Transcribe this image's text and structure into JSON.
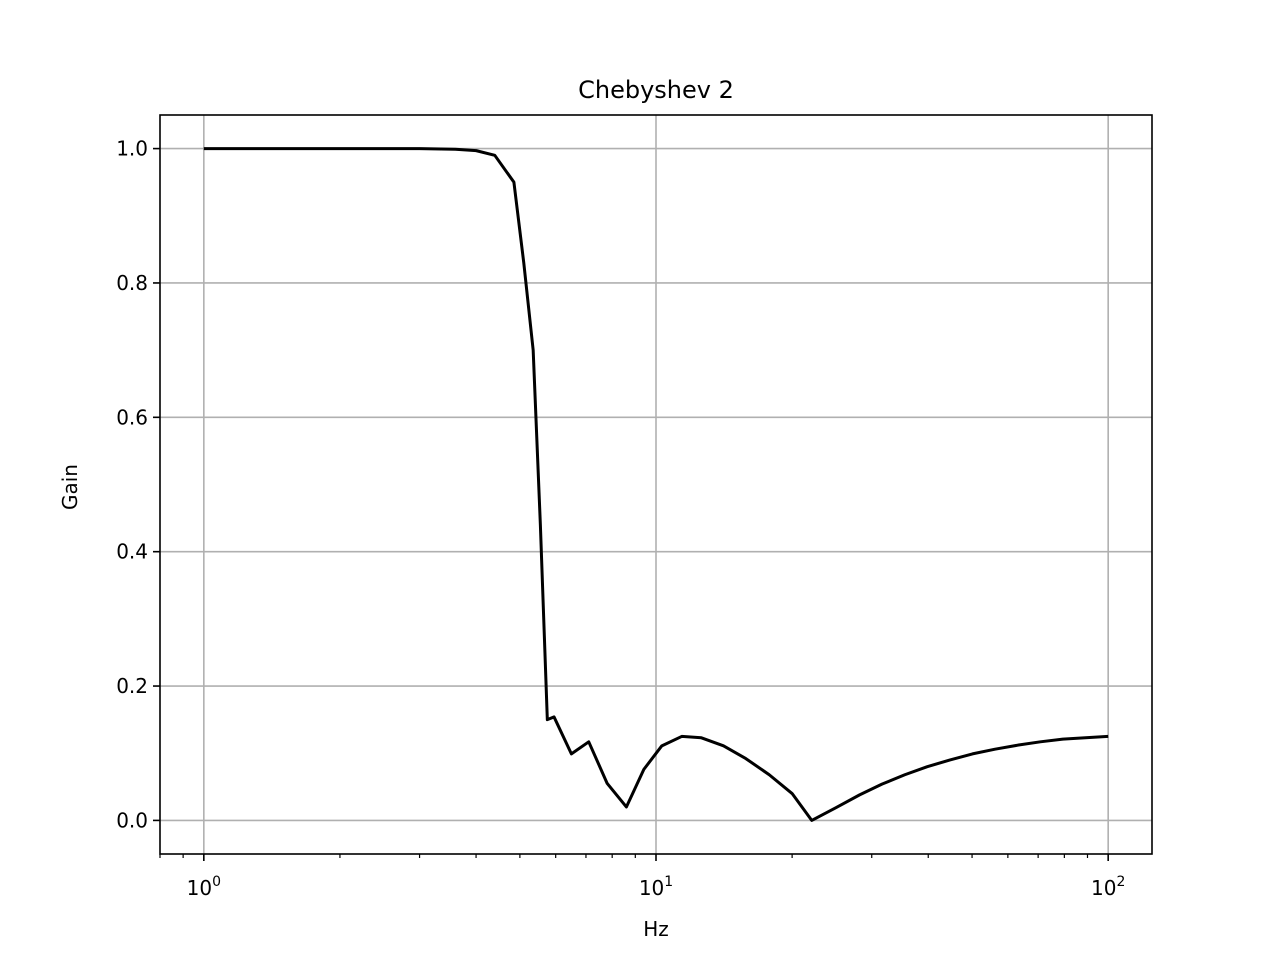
{
  "chart_data": {
    "type": "line",
    "title": "Chebyshev 2",
    "xlabel": "Hz",
    "ylabel": "Gain",
    "x_scale": "log",
    "xlim": [
      0.8,
      125
    ],
    "ylim": [
      -0.05,
      1.05
    ],
    "grid": true,
    "line_color": "#000000",
    "x_ticks": [
      {
        "value": 1,
        "base": "10",
        "exp": "0"
      },
      {
        "value": 10,
        "base": "10",
        "exp": "1"
      },
      {
        "value": 100,
        "base": "10",
        "exp": "2"
      }
    ],
    "y_ticks": [
      {
        "value": 0.0,
        "label": "0.0"
      },
      {
        "value": 0.2,
        "label": "0.2"
      },
      {
        "value": 0.4,
        "label": "0.4"
      },
      {
        "value": 0.6,
        "label": "0.6"
      },
      {
        "value": 0.8,
        "label": "0.8"
      },
      {
        "value": 1.0,
        "label": "1.0"
      }
    ],
    "series": [
      {
        "x": [
          1.0,
          3.0,
          3.6,
          4.0,
          4.4,
          4.85,
          5.1,
          5.35,
          5.55,
          5.75,
          5.95,
          6.5,
          7.1,
          7.8,
          8.6,
          9.4,
          10.3,
          11.4,
          12.6,
          14.1,
          15.8,
          17.8,
          20.0,
          22.1,
          25.0,
          28.2,
          31.6,
          35.5,
          39.8,
          44.7,
          50.1,
          56.2,
          63.1,
          70.8,
          79.4,
          89.1,
          100.0
        ],
        "y": [
          1.0,
          1.0,
          0.999,
          0.997,
          0.99,
          0.95,
          0.83,
          0.7,
          0.44,
          0.15,
          0.154,
          0.099,
          0.117,
          0.055,
          0.02,
          0.076,
          0.111,
          0.125,
          0.123,
          0.111,
          0.092,
          0.068,
          0.04,
          0.0,
          0.019,
          0.038,
          0.054,
          0.068,
          0.08,
          0.09,
          0.099,
          0.106,
          0.112,
          0.117,
          0.121,
          0.123,
          0.125
        ]
      }
    ]
  }
}
